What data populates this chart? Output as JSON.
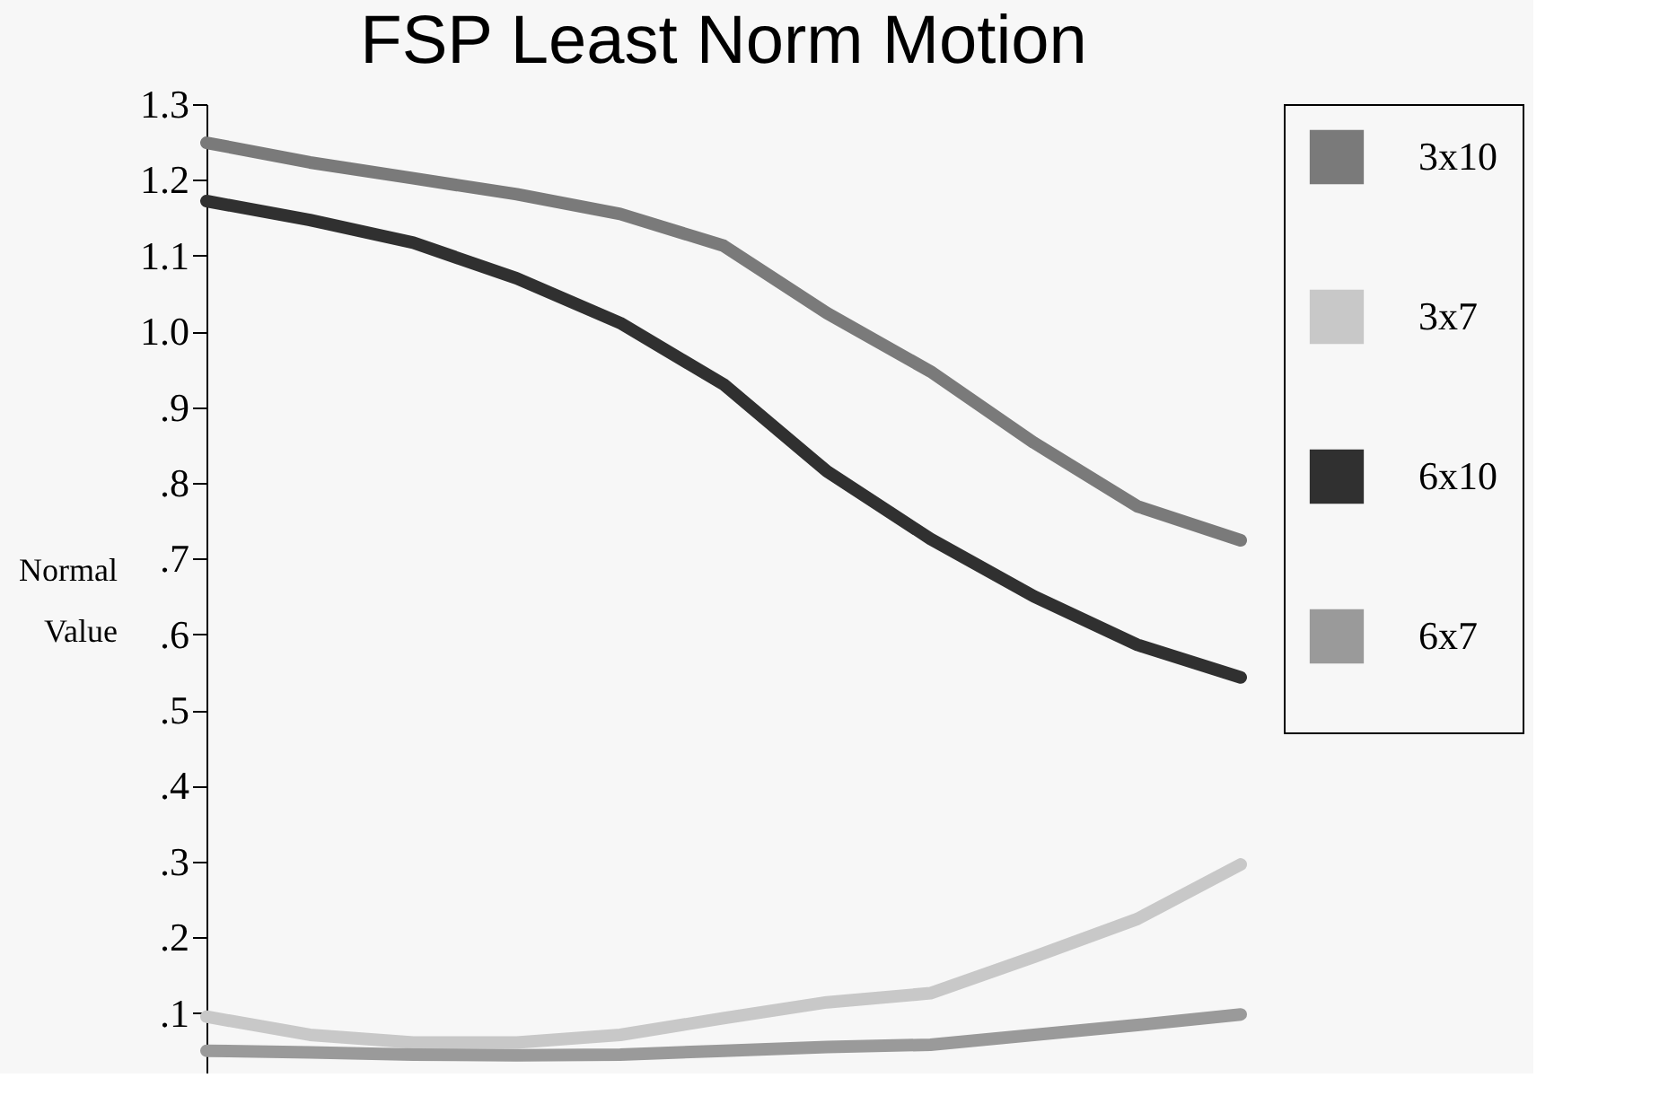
{
  "chart_data": {
    "type": "line",
    "title": "FSP Least Norm Motion",
    "ylabel": "Normal Value",
    "categories": [
      null,
      null,
      null,
      null,
      null,
      null,
      null,
      null,
      null,
      null,
      null
    ],
    "series": [
      {
        "name": "3x10",
        "color": "#7a7a7a",
        "values": [
          1.249,
          1.223,
          1.202,
          1.181,
          1.155,
          1.113,
          1.024,
          0.947,
          0.853,
          0.769,
          0.724
        ]
      },
      {
        "name": "3x7",
        "color": "#c8c8c8",
        "values": [
          0.095,
          0.071,
          0.061,
          0.061,
          0.071,
          0.093,
          0.114,
          0.126,
          0.174,
          0.224,
          0.296
        ]
      },
      {
        "name": "6x10",
        "color": "#303030",
        "values": [
          1.172,
          1.147,
          1.117,
          1.07,
          1.011,
          0.93,
          0.815,
          0.726,
          0.65,
          0.586,
          0.543
        ]
      },
      {
        "name": "6x7",
        "color": "#9a9a9a",
        "values": [
          0.05,
          0.048,
          0.045,
          0.044,
          0.045,
          0.05,
          0.055,
          0.058,
          0.071,
          0.084,
          0.098
        ]
      }
    ],
    "ylim": [
      0.02,
      1.3
    ],
    "yticks": [
      {
        "value": 0.1,
        "label": ".1"
      },
      {
        "value": 0.2,
        "label": ".2"
      },
      {
        "value": 0.3,
        "label": ".3"
      },
      {
        "value": 0.4,
        "label": ".4"
      },
      {
        "value": 0.5,
        "label": ".5"
      },
      {
        "value": 0.6,
        "label": ".6"
      },
      {
        "value": 0.7,
        "label": ".7"
      },
      {
        "value": 0.8,
        "label": ".8"
      },
      {
        "value": 0.9,
        "label": ".9"
      },
      {
        "value": 1.0,
        "label": "1.0"
      },
      1.1,
      1.2,
      1.3
    ],
    "grid": false,
    "legend": "right",
    "marker": "none",
    "line_style": "solid"
  }
}
